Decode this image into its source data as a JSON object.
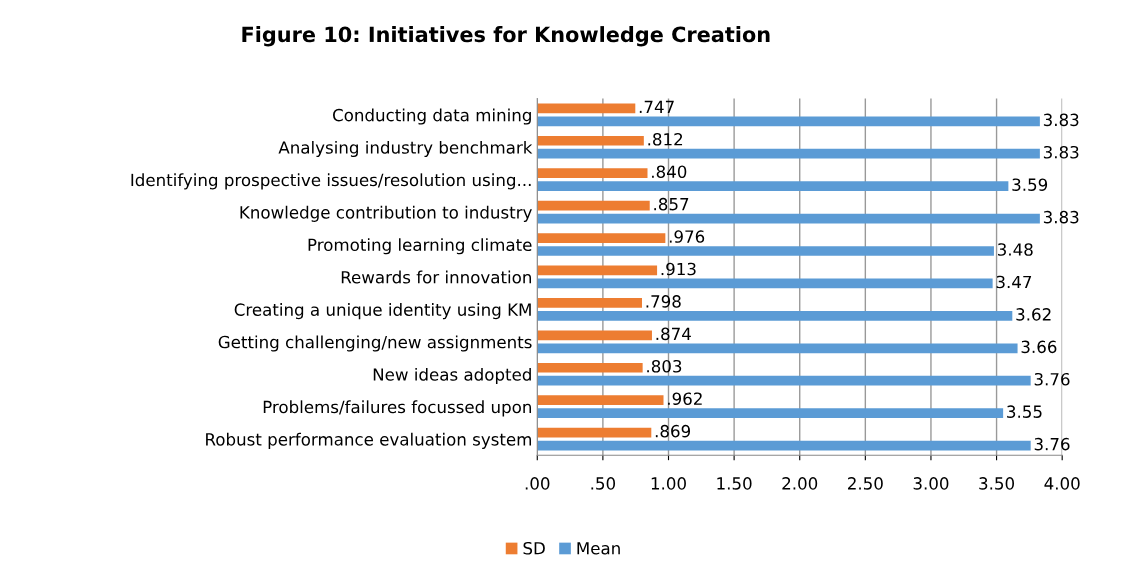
{
  "chart_data": {
    "type": "bar",
    "orientation": "horizontal",
    "title": "Figure 10: Initiatives for Knowledge Creation",
    "categories": [
      "Conducting data mining",
      "Analysing industry benchmark",
      "Identifying prospective issues/resolution using...",
      "Knowledge contribution to industry",
      "Promoting learning climate",
      "Rewards for innovation",
      "Creating a unique identity using KM",
      "Getting challenging/new assignments",
      "New ideas adopted",
      "Problems/failures focussed upon",
      "Robust performance evaluation system"
    ],
    "series": [
      {
        "name": "SD",
        "color": "#ed7d31",
        "values": [
          0.747,
          0.812,
          0.84,
          0.857,
          0.976,
          0.913,
          0.798,
          0.874,
          0.803,
          0.962,
          0.869
        ],
        "value_labels": [
          ".747",
          ".812",
          ".840",
          ".857",
          ".976",
          ".913",
          ".798",
          ".874",
          ".803",
          ".962",
          ".869"
        ]
      },
      {
        "name": "Mean",
        "color": "#5b9bd5",
        "values": [
          3.83,
          3.83,
          3.59,
          3.83,
          3.48,
          3.47,
          3.62,
          3.66,
          3.76,
          3.55,
          3.76
        ],
        "value_labels": [
          "3.83",
          "3.83",
          "3.59",
          "3.83",
          "3.48",
          "3.47",
          "3.62",
          "3.66",
          "3.76",
          "3.55",
          "3.76"
        ]
      }
    ],
    "xlim": [
      0,
      4
    ],
    "xticks": [
      {
        "value": 0,
        "label": ".00"
      },
      {
        "value": 0.5,
        "label": ".50"
      },
      {
        "value": 1,
        "label": "1.00"
      },
      {
        "value": 1.5,
        "label": "1.50"
      },
      {
        "value": 2,
        "label": "2.00"
      },
      {
        "value": 2.5,
        "label": "2.50"
      },
      {
        "value": 3,
        "label": "3.00"
      },
      {
        "value": 3.5,
        "label": "3.50"
      },
      {
        "value": 4,
        "label": "4.00"
      }
    ],
    "grid": "x",
    "legend": "bottom"
  }
}
